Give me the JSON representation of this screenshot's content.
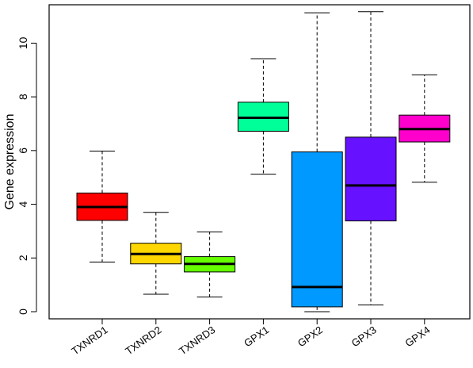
{
  "chart_data": {
    "type": "boxplot",
    "title": "",
    "xlabel": "",
    "ylabel": "Gene expression",
    "ylim": [
      -0.3,
      11.4
    ],
    "yticks": [
      0,
      2,
      4,
      6,
      8,
      10
    ],
    "categories": [
      "TXNRD1",
      "TXNRD2",
      "TXNRD3",
      "GPX1",
      "GPX2",
      "GPX3",
      "GPX4"
    ],
    "boxes": [
      {
        "name": "TXNRD1",
        "min": 1.85,
        "q1": 3.4,
        "median": 3.9,
        "q3": 4.42,
        "max": 5.98,
        "color": "#ff0000"
      },
      {
        "name": "TXNRD2",
        "min": 0.65,
        "q1": 1.78,
        "median": 2.15,
        "q3": 2.55,
        "max": 3.7,
        "color": "#ffd700"
      },
      {
        "name": "TXNRD3",
        "min": 0.55,
        "q1": 1.48,
        "median": 1.78,
        "q3": 2.05,
        "max": 2.97,
        "color": "#66ff00"
      },
      {
        "name": "GPX1",
        "min": 5.12,
        "q1": 6.72,
        "median": 7.22,
        "q3": 7.8,
        "max": 9.42,
        "color": "#00ff99"
      },
      {
        "name": "GPX2",
        "min": 0.0,
        "q1": 0.18,
        "median": 0.92,
        "q3": 5.95,
        "max": 11.13,
        "color": "#0099ff"
      },
      {
        "name": "GPX3",
        "min": 0.25,
        "q1": 3.38,
        "median": 4.7,
        "q3": 6.5,
        "max": 11.17,
        "color": "#6611ff"
      },
      {
        "name": "GPX4",
        "min": 4.82,
        "q1": 6.32,
        "median": 6.8,
        "q3": 7.32,
        "max": 8.82,
        "color": "#ff00cc"
      }
    ],
    "grid": false,
    "legend": "none"
  }
}
